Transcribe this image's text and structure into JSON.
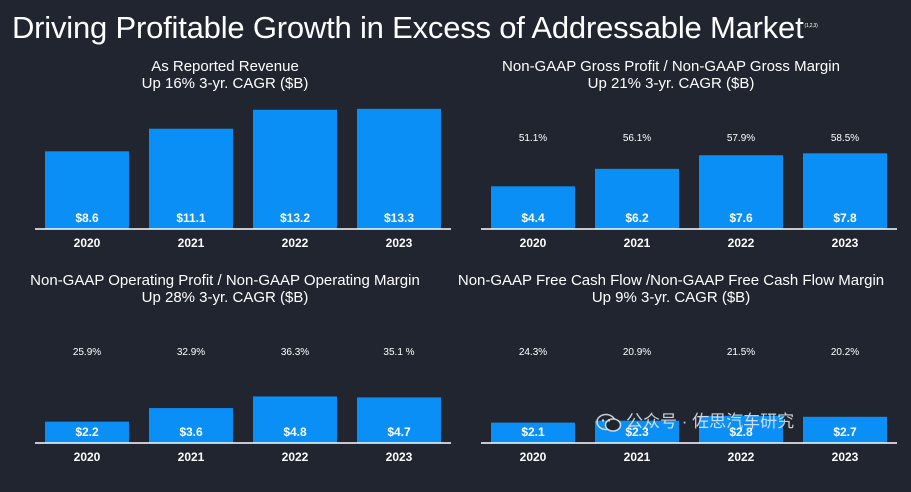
{
  "title": "Driving Profitable Growth in Excess of Addressable Market",
  "title_note": "(1,2,3)",
  "colors": {
    "bar": "#0a8ff7",
    "background": "#202530",
    "text": "#ffffff",
    "axis": "#ffffff"
  },
  "watermark": {
    "text": "公众号 · 佐思汽车研究",
    "icon": "wechat-icon"
  },
  "chart_data": [
    {
      "type": "bar",
      "title": "As Reported Revenue",
      "subtitle": "Up 16% 3-yr. CAGR ($B)",
      "categories": [
        "2020",
        "2021",
        "2022",
        "2023"
      ],
      "values": [
        8.6,
        11.1,
        13.2,
        13.3
      ],
      "value_labels": [
        "$8.6",
        "$11.1",
        "$13.2",
        "$13.3"
      ],
      "ylim": [
        0,
        14.5
      ],
      "xlabel": "",
      "ylabel": "",
      "grid": false
    },
    {
      "type": "bar",
      "title": "Non-GAAP Gross Profit / Non-GAAP Gross Margin",
      "subtitle": "Up 21% 3-yr. CAGR ($B)",
      "categories": [
        "2020",
        "2021",
        "2022",
        "2023"
      ],
      "values": [
        4.4,
        6.2,
        7.6,
        7.8
      ],
      "value_labels": [
        "$4.4",
        "$6.2",
        "$7.6",
        "$7.8"
      ],
      "margins": [
        "51.1%",
        "56.1%",
        "57.9%",
        "58.5%"
      ],
      "ylim": [
        0,
        13.5
      ],
      "xlabel": "",
      "ylabel": "",
      "grid": false
    },
    {
      "type": "bar",
      "title": "Non-GAAP Operating Profit / Non-GAAP Operating Margin",
      "subtitle": "Up 28% 3-yr. CAGR ($B)",
      "categories": [
        "2020",
        "2021",
        "2022",
        "2023"
      ],
      "values": [
        2.2,
        3.6,
        4.8,
        4.7
      ],
      "value_labels": [
        "$2.2",
        "$3.6",
        "$4.8",
        "$4.7"
      ],
      "margins": [
        "25.9%",
        "32.9%",
        "36.3%",
        "35.1 %"
      ],
      "ylim": [
        0,
        13.5
      ],
      "xlabel": "",
      "ylabel": "",
      "grid": false
    },
    {
      "type": "bar",
      "title": "Non-GAAP Free Cash Flow /Non-GAAP Free Cash Flow Margin",
      "subtitle": "Up 9% 3-yr. CAGR ($B)",
      "categories": [
        "2020",
        "2021",
        "2022",
        "2023"
      ],
      "values": [
        2.1,
        2.3,
        2.8,
        2.7
      ],
      "value_labels": [
        "$2.1",
        "$2.3",
        "$2.8",
        "$2.7"
      ],
      "margins": [
        "24.3%",
        "20.9%",
        "21.5%",
        "20.2%"
      ],
      "ylim": [
        0,
        13.5
      ],
      "xlabel": "",
      "ylabel": "",
      "grid": false
    }
  ]
}
